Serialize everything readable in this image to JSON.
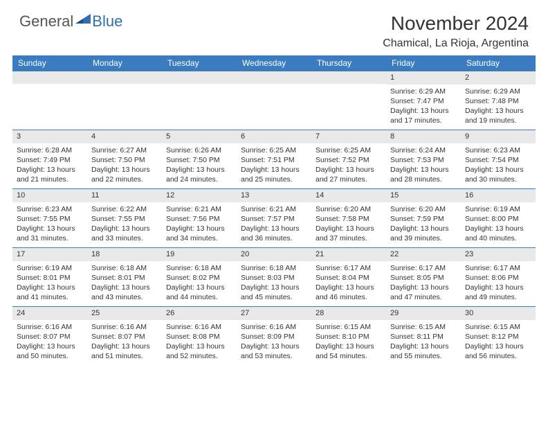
{
  "brand": {
    "general": "General",
    "blue": "Blue"
  },
  "title": "November 2024",
  "location": "Chamical, La Rioja, Argentina",
  "colors": {
    "header_bg": "#3a7cbf",
    "day_number_bg": "#e9e9e9",
    "text": "#333333",
    "brand_blue": "#2f6fb0"
  },
  "weekdays": [
    "Sunday",
    "Monday",
    "Tuesday",
    "Wednesday",
    "Thursday",
    "Friday",
    "Saturday"
  ],
  "weeks": [
    [
      null,
      null,
      null,
      null,
      null,
      {
        "n": "1",
        "sunrise": "Sunrise: 6:29 AM",
        "sunset": "Sunset: 7:47 PM",
        "daylight1": "Daylight: 13 hours",
        "daylight2": "and 17 minutes."
      },
      {
        "n": "2",
        "sunrise": "Sunrise: 6:29 AM",
        "sunset": "Sunset: 7:48 PM",
        "daylight1": "Daylight: 13 hours",
        "daylight2": "and 19 minutes."
      }
    ],
    [
      {
        "n": "3",
        "sunrise": "Sunrise: 6:28 AM",
        "sunset": "Sunset: 7:49 PM",
        "daylight1": "Daylight: 13 hours",
        "daylight2": "and 21 minutes."
      },
      {
        "n": "4",
        "sunrise": "Sunrise: 6:27 AM",
        "sunset": "Sunset: 7:50 PM",
        "daylight1": "Daylight: 13 hours",
        "daylight2": "and 22 minutes."
      },
      {
        "n": "5",
        "sunrise": "Sunrise: 6:26 AM",
        "sunset": "Sunset: 7:50 PM",
        "daylight1": "Daylight: 13 hours",
        "daylight2": "and 24 minutes."
      },
      {
        "n": "6",
        "sunrise": "Sunrise: 6:25 AM",
        "sunset": "Sunset: 7:51 PM",
        "daylight1": "Daylight: 13 hours",
        "daylight2": "and 25 minutes."
      },
      {
        "n": "7",
        "sunrise": "Sunrise: 6:25 AM",
        "sunset": "Sunset: 7:52 PM",
        "daylight1": "Daylight: 13 hours",
        "daylight2": "and 27 minutes."
      },
      {
        "n": "8",
        "sunrise": "Sunrise: 6:24 AM",
        "sunset": "Sunset: 7:53 PM",
        "daylight1": "Daylight: 13 hours",
        "daylight2": "and 28 minutes."
      },
      {
        "n": "9",
        "sunrise": "Sunrise: 6:23 AM",
        "sunset": "Sunset: 7:54 PM",
        "daylight1": "Daylight: 13 hours",
        "daylight2": "and 30 minutes."
      }
    ],
    [
      {
        "n": "10",
        "sunrise": "Sunrise: 6:23 AM",
        "sunset": "Sunset: 7:55 PM",
        "daylight1": "Daylight: 13 hours",
        "daylight2": "and 31 minutes."
      },
      {
        "n": "11",
        "sunrise": "Sunrise: 6:22 AM",
        "sunset": "Sunset: 7:55 PM",
        "daylight1": "Daylight: 13 hours",
        "daylight2": "and 33 minutes."
      },
      {
        "n": "12",
        "sunrise": "Sunrise: 6:21 AM",
        "sunset": "Sunset: 7:56 PM",
        "daylight1": "Daylight: 13 hours",
        "daylight2": "and 34 minutes."
      },
      {
        "n": "13",
        "sunrise": "Sunrise: 6:21 AM",
        "sunset": "Sunset: 7:57 PM",
        "daylight1": "Daylight: 13 hours",
        "daylight2": "and 36 minutes."
      },
      {
        "n": "14",
        "sunrise": "Sunrise: 6:20 AM",
        "sunset": "Sunset: 7:58 PM",
        "daylight1": "Daylight: 13 hours",
        "daylight2": "and 37 minutes."
      },
      {
        "n": "15",
        "sunrise": "Sunrise: 6:20 AM",
        "sunset": "Sunset: 7:59 PM",
        "daylight1": "Daylight: 13 hours",
        "daylight2": "and 39 minutes."
      },
      {
        "n": "16",
        "sunrise": "Sunrise: 6:19 AM",
        "sunset": "Sunset: 8:00 PM",
        "daylight1": "Daylight: 13 hours",
        "daylight2": "and 40 minutes."
      }
    ],
    [
      {
        "n": "17",
        "sunrise": "Sunrise: 6:19 AM",
        "sunset": "Sunset: 8:01 PM",
        "daylight1": "Daylight: 13 hours",
        "daylight2": "and 41 minutes."
      },
      {
        "n": "18",
        "sunrise": "Sunrise: 6:18 AM",
        "sunset": "Sunset: 8:01 PM",
        "daylight1": "Daylight: 13 hours",
        "daylight2": "and 43 minutes."
      },
      {
        "n": "19",
        "sunrise": "Sunrise: 6:18 AM",
        "sunset": "Sunset: 8:02 PM",
        "daylight1": "Daylight: 13 hours",
        "daylight2": "and 44 minutes."
      },
      {
        "n": "20",
        "sunrise": "Sunrise: 6:18 AM",
        "sunset": "Sunset: 8:03 PM",
        "daylight1": "Daylight: 13 hours",
        "daylight2": "and 45 minutes."
      },
      {
        "n": "21",
        "sunrise": "Sunrise: 6:17 AM",
        "sunset": "Sunset: 8:04 PM",
        "daylight1": "Daylight: 13 hours",
        "daylight2": "and 46 minutes."
      },
      {
        "n": "22",
        "sunrise": "Sunrise: 6:17 AM",
        "sunset": "Sunset: 8:05 PM",
        "daylight1": "Daylight: 13 hours",
        "daylight2": "and 47 minutes."
      },
      {
        "n": "23",
        "sunrise": "Sunrise: 6:17 AM",
        "sunset": "Sunset: 8:06 PM",
        "daylight1": "Daylight: 13 hours",
        "daylight2": "and 49 minutes."
      }
    ],
    [
      {
        "n": "24",
        "sunrise": "Sunrise: 6:16 AM",
        "sunset": "Sunset: 8:07 PM",
        "daylight1": "Daylight: 13 hours",
        "daylight2": "and 50 minutes."
      },
      {
        "n": "25",
        "sunrise": "Sunrise: 6:16 AM",
        "sunset": "Sunset: 8:07 PM",
        "daylight1": "Daylight: 13 hours",
        "daylight2": "and 51 minutes."
      },
      {
        "n": "26",
        "sunrise": "Sunrise: 6:16 AM",
        "sunset": "Sunset: 8:08 PM",
        "daylight1": "Daylight: 13 hours",
        "daylight2": "and 52 minutes."
      },
      {
        "n": "27",
        "sunrise": "Sunrise: 6:16 AM",
        "sunset": "Sunset: 8:09 PM",
        "daylight1": "Daylight: 13 hours",
        "daylight2": "and 53 minutes."
      },
      {
        "n": "28",
        "sunrise": "Sunrise: 6:15 AM",
        "sunset": "Sunset: 8:10 PM",
        "daylight1": "Daylight: 13 hours",
        "daylight2": "and 54 minutes."
      },
      {
        "n": "29",
        "sunrise": "Sunrise: 6:15 AM",
        "sunset": "Sunset: 8:11 PM",
        "daylight1": "Daylight: 13 hours",
        "daylight2": "and 55 minutes."
      },
      {
        "n": "30",
        "sunrise": "Sunrise: 6:15 AM",
        "sunset": "Sunset: 8:12 PM",
        "daylight1": "Daylight: 13 hours",
        "daylight2": "and 56 minutes."
      }
    ]
  ]
}
